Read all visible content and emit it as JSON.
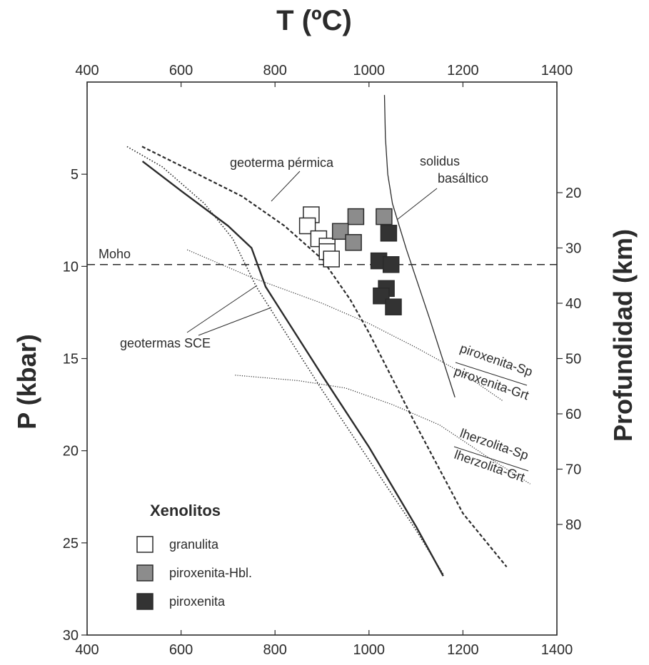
{
  "chart_data": {
    "type": "scatter",
    "title": "T (ºC)",
    "xlabel": "T (ºC)",
    "ylabel": "P (kbar)",
    "ylabel_right": "Profundidad (km)",
    "xlim": [
      400,
      1400
    ],
    "ylim": [
      30,
      0
    ],
    "x_ticks": [
      400,
      600,
      800,
      1000,
      1200,
      1400
    ],
    "y_ticks": [
      5,
      10,
      15,
      20,
      25,
      30
    ],
    "depth_ticks": [
      20,
      30,
      40,
      50,
      60,
      70,
      80
    ],
    "depth_scale_kbar_per_km": 0.3,
    "grid": false,
    "legend_title": "Xenolitos",
    "series": [
      {
        "name": "granulita",
        "color": "#ffffff",
        "points": [
          [
            877,
            7.2
          ],
          [
            869,
            7.8
          ],
          [
            893,
            8.5
          ],
          [
            911,
            8.9
          ],
          [
            911,
            9.2
          ],
          [
            920,
            9.6
          ]
        ]
      },
      {
        "name": "piroxenita-Hbl.",
        "color": "#8c8c8c",
        "points": [
          [
            972,
            7.3
          ],
          [
            1032,
            7.3
          ],
          [
            939,
            8.1
          ],
          [
            967,
            8.7
          ]
        ]
      },
      {
        "name": "piroxenita",
        "color": "#333333",
        "points": [
          [
            1042,
            8.2
          ],
          [
            1021,
            9.7
          ],
          [
            1047,
            9.9
          ],
          [
            1037,
            11.2
          ],
          [
            1026,
            11.6
          ],
          [
            1052,
            12.2
          ]
        ]
      }
    ],
    "lines": [
      {
        "name": "geoterma pérmica",
        "style": "dashed",
        "points": [
          [
            517,
            3.5
          ],
          [
            620,
            4.8
          ],
          [
            730,
            6.2
          ],
          [
            820,
            7.8
          ],
          [
            900,
            9.6
          ],
          [
            960,
            11.8
          ],
          [
            1000,
            13.6
          ],
          [
            1100,
            18.6
          ],
          [
            1200,
            23.4
          ],
          [
            1293,
            26.3
          ]
        ]
      },
      {
        "name": "geotermas SCE",
        "style": "solid",
        "points": [
          [
            518,
            4.3
          ],
          [
            600,
            5.9
          ],
          [
            700,
            7.8
          ],
          [
            750,
            9.0
          ],
          [
            780,
            11.1
          ],
          [
            900,
            15.9
          ],
          [
            1000,
            19.8
          ],
          [
            1100,
            24.1
          ],
          [
            1158,
            26.8
          ]
        ]
      },
      {
        "name": "geotermas SCE",
        "style": "dotted",
        "points": [
          [
            485,
            3.5
          ],
          [
            560,
            4.6
          ],
          [
            650,
            6.6
          ],
          [
            710,
            8.5
          ],
          [
            760,
            11.1
          ],
          [
            800,
            12.7
          ],
          [
            900,
            16.7
          ],
          [
            1000,
            20.5
          ],
          [
            1100,
            24.3
          ],
          [
            1158,
            26.7
          ]
        ]
      },
      {
        "name": "solidus basáltico",
        "style": "solid",
        "points": [
          [
            1033,
            0.7
          ],
          [
            1035,
            3.0
          ],
          [
            1040,
            5.0
          ],
          [
            1050,
            6.6
          ],
          [
            1080,
            9.1
          ],
          [
            1130,
            12.9
          ],
          [
            1183,
            17.1
          ]
        ]
      },
      {
        "name": "Moho",
        "style": "dashed",
        "points": [
          [
            400,
            9.9
          ],
          [
            1400,
            9.9
          ]
        ]
      },
      {
        "name": "piroxenita-Sp / piroxenita-Grt",
        "style": "dotted",
        "points": [
          [
            613,
            9.1
          ],
          [
            750,
            10.6
          ],
          [
            900,
            12.0
          ],
          [
            1000,
            13.1
          ],
          [
            1100,
            14.4
          ],
          [
            1200,
            15.8
          ],
          [
            1285,
            17.3
          ]
        ]
      },
      {
        "name": "lherzolita-Sp / lherzolita-Grt",
        "style": "dotted",
        "points": [
          [
            715,
            15.9
          ],
          [
            850,
            16.2
          ],
          [
            950,
            16.6
          ],
          [
            1050,
            17.5
          ],
          [
            1150,
            18.6
          ],
          [
            1250,
            20.3
          ],
          [
            1343,
            21.8
          ]
        ]
      }
    ],
    "annotations": {
      "moho": "Moho",
      "geoterma_permica": "geoterma pérmica",
      "solidus_line1": "solidus",
      "solidus_line2": "basáltico",
      "geotermas_sce": "geotermas SCE",
      "piroxenita_sp": "piroxenita-Sp",
      "piroxenita_grt": "piroxenita-Grt",
      "lherzolita_sp": "lherzolita-Sp",
      "lherzolita_grt": "lherzolita-Grt"
    }
  }
}
